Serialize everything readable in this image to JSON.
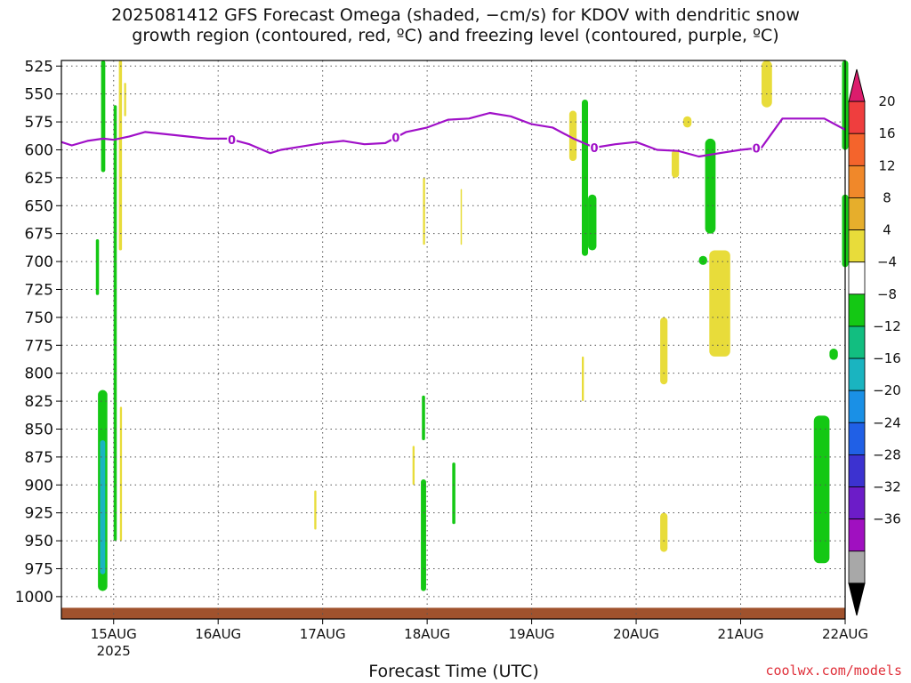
{
  "title_line1": "2025081412 GFS Forecast Omega (shaded, −cm/s) for KDOV with dendritic snow",
  "title_line2": "growth region (contoured, red, ºC) and freezing level (contoured, purple, ºC)",
  "xlabel": "Forecast Time (UTC)",
  "source": "coolwx.com/models",
  "chart_data": {
    "type": "heatmap",
    "y_axis": {
      "label": "",
      "scale": "pressure (hPa)",
      "ticks": [
        525,
        550,
        575,
        600,
        625,
        650,
        675,
        700,
        725,
        750,
        775,
        800,
        825,
        850,
        875,
        900,
        925,
        950,
        975,
        1000
      ],
      "range": [
        520,
        1020
      ]
    },
    "x_axis": {
      "ticks": [
        "15AUG",
        "16AUG",
        "17AUG",
        "18AUG",
        "19AUG",
        "20AUG",
        "21AUG",
        "22AUG"
      ],
      "year_label": "2025",
      "range_days": [
        14.5,
        22.0
      ]
    },
    "grid": true,
    "colorbar": {
      "labels": [
        "20",
        "16",
        "12",
        "8",
        "4",
        "−4",
        "−8",
        "−12",
        "−16",
        "−20",
        "−24",
        "−28",
        "−32",
        "−36"
      ],
      "colors": [
        "#dc1c6c",
        "#ef3e3e",
        "#f4642c",
        "#f0882a",
        "#e6ae2c",
        "#e8dc3a",
        "#ffffff",
        "#14c814",
        "#12be80",
        "#1ab4c0",
        "#1a90e6",
        "#2060e6",
        "#3c32d0",
        "#6c1cc8",
        "#a010c0",
        "#a8a8a8",
        "#000000"
      ]
    },
    "freezing_level": {
      "color": "#a010c8",
      "contour_label": "0",
      "days": [
        14.5,
        14.6,
        14.75,
        14.9,
        15.0,
        15.15,
        15.3,
        15.5,
        15.7,
        15.9,
        16.1,
        16.3,
        16.5,
        16.6,
        16.8,
        17.0,
        17.2,
        17.4,
        17.6,
        17.8,
        18.0,
        18.2,
        18.4,
        18.6,
        18.8,
        19.0,
        19.2,
        19.4,
        19.6,
        19.8,
        20.0,
        20.2,
        20.4,
        20.6,
        20.8,
        21.0,
        21.2,
        21.4,
        21.6,
        21.8,
        22.0
      ],
      "pressure": [
        593,
        596,
        592,
        590,
        591,
        588,
        584,
        586,
        588,
        590,
        590,
        595,
        603,
        600,
        597,
        594,
        592,
        595,
        594,
        584,
        580,
        573,
        572,
        567,
        570,
        577,
        580,
        590,
        598,
        595,
        593,
        600,
        601,
        606,
        603,
        600,
        598,
        572,
        572,
        572,
        582
      ]
    },
    "omega_regions": [
      {
        "d0": 14.88,
        "d1": 14.92,
        "p0": 520,
        "p1": 620,
        "value": -6
      },
      {
        "d0": 14.83,
        "d1": 14.86,
        "p0": 680,
        "p1": 730,
        "value": -6
      },
      {
        "d0": 14.85,
        "d1": 14.94,
        "p0": 815,
        "p1": 995,
        "value": -6
      },
      {
        "d0": 14.87,
        "d1": 14.92,
        "p0": 860,
        "p1": 980,
        "value": -14
      },
      {
        "d0": 15.0,
        "d1": 15.03,
        "p0": 560,
        "p1": 950,
        "value": -6
      },
      {
        "d0": 15.05,
        "d1": 15.08,
        "p0": 520,
        "p1": 690,
        "value": 6
      },
      {
        "d0": 15.1,
        "d1": 15.12,
        "p0": 540,
        "p1": 570,
        "value": 6
      },
      {
        "d0": 15.06,
        "d1": 15.08,
        "p0": 830,
        "p1": 950,
        "value": 6
      },
      {
        "d0": 17.95,
        "d1": 17.98,
        "p0": 820,
        "p1": 860,
        "value": -6
      },
      {
        "d0": 17.94,
        "d1": 17.99,
        "p0": 895,
        "p1": 995,
        "value": -6
      },
      {
        "d0": 18.24,
        "d1": 18.27,
        "p0": 880,
        "p1": 935,
        "value": -6
      },
      {
        "d0": 17.86,
        "d1": 17.88,
        "p0": 865,
        "p1": 900,
        "value": 6
      },
      {
        "d0": 16.92,
        "d1": 16.94,
        "p0": 905,
        "p1": 940,
        "value": 6
      },
      {
        "d0": 17.96,
        "d1": 17.98,
        "p0": 625,
        "p1": 685,
        "value": 6
      },
      {
        "d0": 18.32,
        "d1": 18.33,
        "p0": 635,
        "p1": 685,
        "value": 6
      },
      {
        "d0": 19.48,
        "d1": 19.54,
        "p0": 555,
        "p1": 695,
        "value": -6
      },
      {
        "d0": 19.54,
        "d1": 19.62,
        "p0": 640,
        "p1": 690,
        "value": -6
      },
      {
        "d0": 19.36,
        "d1": 19.43,
        "p0": 565,
        "p1": 610,
        "value": 6
      },
      {
        "d0": 19.48,
        "d1": 19.5,
        "p0": 785,
        "p1": 825,
        "value": 6
      },
      {
        "d0": 20.23,
        "d1": 20.3,
        "p0": 750,
        "p1": 810,
        "value": 6
      },
      {
        "d0": 20.23,
        "d1": 20.3,
        "p0": 925,
        "p1": 960,
        "value": 6
      },
      {
        "d0": 20.34,
        "d1": 20.41,
        "p0": 600,
        "p1": 625,
        "value": 6
      },
      {
        "d0": 20.45,
        "d1": 20.53,
        "p0": 570,
        "p1": 580,
        "value": 6
      },
      {
        "d0": 20.66,
        "d1": 20.76,
        "p0": 590,
        "p1": 675,
        "value": -6
      },
      {
        "d0": 20.6,
        "d1": 20.68,
        "p0": 695,
        "p1": 703,
        "value": -6
      },
      {
        "d0": 20.7,
        "d1": 20.9,
        "p0": 690,
        "p1": 785,
        "value": 6
      },
      {
        "d0": 21.2,
        "d1": 21.3,
        "p0": 520,
        "p1": 562,
        "value": 6
      },
      {
        "d0": 21.97,
        "d1": 22.03,
        "p0": 520,
        "p1": 600,
        "value": -6
      },
      {
        "d0": 21.97,
        "d1": 22.03,
        "p0": 640,
        "p1": 705,
        "value": -6
      },
      {
        "d0": 21.85,
        "d1": 21.93,
        "p0": 778,
        "p1": 788,
        "value": -6
      },
      {
        "d0": 21.7,
        "d1": 21.85,
        "p0": 838,
        "p1": 970,
        "value": -6
      }
    ],
    "surface_color": "#a0522d"
  }
}
